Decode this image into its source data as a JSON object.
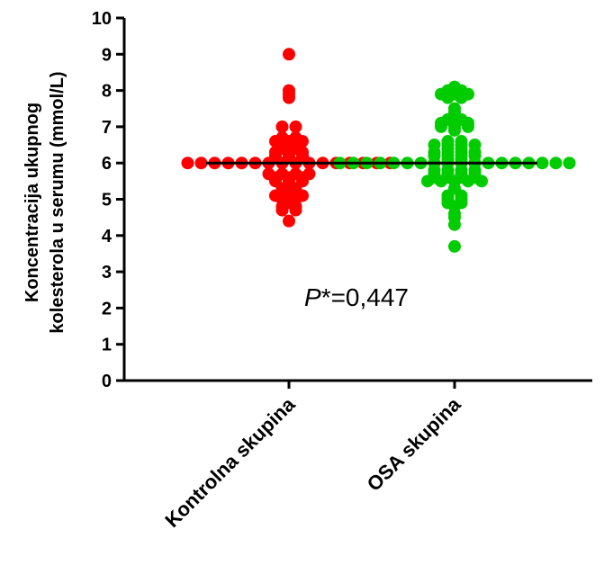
{
  "chart_data": {
    "type": "scatter",
    "ylabel_lines": [
      "Koncentracija ukupnog",
      "kolesterola u serumu (mmol/L)"
    ],
    "categories": [
      "Kontrolna skupina",
      "OSA skupina"
    ],
    "ylim": [
      0,
      10
    ],
    "yticks": [
      "0",
      "1",
      "2",
      "3",
      "4",
      "5",
      "6",
      "7",
      "8",
      "9",
      "10"
    ],
    "grid": false,
    "annotation": {
      "prefix": "P",
      "suffix": "*=0,447"
    },
    "series": [
      {
        "category": "Kontrolna skupina",
        "color": "#ff0000",
        "median": 6.0,
        "values": [
          9.0,
          7.9,
          7.8,
          8.0,
          7.0,
          7.0,
          6.7,
          6.6,
          6.4,
          6.3,
          6.3,
          6.2,
          6.2,
          6.2,
          6.3,
          6.4,
          6.5,
          6.6,
          6.6,
          6.7,
          6.0,
          6.0,
          6.0,
          6.0,
          6.0,
          6.0,
          6.0,
          6.0,
          6.0,
          6.0,
          6.0,
          6.0,
          6.0,
          6.0,
          6.0,
          6.0,
          5.5,
          5.7,
          5.7,
          5.6,
          5.6,
          5.6,
          5.7,
          5.7,
          5.5,
          5.5,
          5.3,
          5.1,
          5.0,
          5.1,
          5.2,
          5.1,
          5.0,
          5.3,
          4.9,
          4.7,
          4.8,
          4.7,
          4.8,
          4.4
        ]
      },
      {
        "category": "OSA skupina",
        "color": "#00cc00",
        "median": 6.0,
        "values": [
          7.9,
          7.9,
          8.0,
          8.1,
          8.0,
          7.8,
          7.8,
          7.9,
          7.4,
          7.5,
          7.2,
          7.1,
          7.0,
          7.0,
          6.9,
          7.1,
          7.0,
          7.1,
          7.2,
          6.6,
          6.5,
          6.5,
          6.4,
          6.3,
          6.3,
          6.2,
          6.2,
          6.1,
          6.1,
          6.2,
          6.2,
          6.3,
          6.3,
          6.4,
          6.5,
          6.5,
          6.6,
          6.0,
          6.0,
          6.0,
          6.0,
          6.0,
          6.0,
          6.0,
          6.0,
          6.0,
          6.0,
          6.0,
          6.0,
          6.0,
          6.0,
          6.0,
          6.0,
          6.0,
          6.0,
          5.8,
          5.8,
          5.7,
          5.7,
          5.6,
          5.6,
          5.5,
          5.5,
          5.5,
          5.5,
          5.5,
          5.6,
          5.6,
          5.7,
          5.7,
          5.8,
          5.8,
          5.3,
          5.1,
          5.0,
          4.9,
          4.9,
          4.8,
          5.0,
          5.1,
          4.6,
          4.5,
          4.3,
          3.7
        ]
      }
    ]
  }
}
